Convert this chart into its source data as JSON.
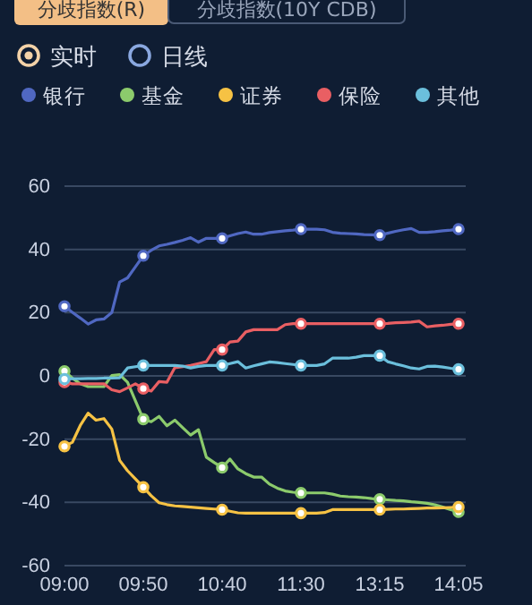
{
  "chart_data": {
    "type": "line",
    "annotations": [
      "分歧指数(R)",
      "分歧指数(10Y CDB)",
      "实时",
      "日线"
    ],
    "categories": [
      "09:00",
      null,
      null,
      null,
      null,
      null,
      null,
      null,
      null,
      null,
      "09:50",
      null,
      null,
      null,
      null,
      null,
      null,
      null,
      null,
      null,
      "10:40",
      null,
      null,
      null,
      null,
      null,
      null,
      null,
      null,
      null,
      "11:30",
      null,
      null,
      null,
      null,
      null,
      null,
      null,
      null,
      null,
      "13:15",
      null,
      null,
      null,
      null,
      null,
      null,
      null,
      null,
      null,
      "14:05"
    ],
    "ylim": [
      -60,
      60
    ],
    "yticks": [
      -60,
      -40,
      -20,
      0,
      20,
      40,
      60
    ],
    "grid": "y",
    "legend": "top",
    "line_style": "solid",
    "series": [
      {
        "name": "银行",
        "color": "#5068c2",
        "values": [
          22,
          20.1,
          18.3,
          16.4,
          17.7,
          18,
          20,
          29.7,
          31,
          34.5,
          38,
          39.7,
          41.1,
          41.6,
          42.2,
          42.9,
          43.7,
          42.3,
          43.5,
          43.5,
          43.5,
          44.3,
          45,
          45.5,
          44.8,
          44.8,
          45.3,
          45.6,
          45.9,
          46.1,
          46.4,
          46.4,
          46.4,
          46.2,
          45.4,
          45.1,
          45,
          44.9,
          44.7,
          44.6,
          44.5,
          45.1,
          45.7,
          46.2,
          46.6,
          45.4,
          45.4,
          45.6,
          45.9,
          46.1,
          46.4
        ]
      },
      {
        "name": "基金",
        "color": "#8ccb6c",
        "values": [
          1.5,
          -0.7,
          -2.5,
          -3.4,
          -3.4,
          -3.4,
          0.1,
          0.4,
          -2,
          -7.9,
          -13.7,
          -14.5,
          -12.8,
          -15.8,
          -14,
          -16.4,
          -18.7,
          -17,
          -25.7,
          -27.4,
          -29,
          -26.3,
          -29.4,
          -30.9,
          -32,
          -32,
          -34.2,
          -35.5,
          -36.4,
          -36.8,
          -37,
          -37,
          -37,
          -37,
          -37.4,
          -38,
          -38.2,
          -38.3,
          -38.5,
          -38.8,
          -39,
          -39.2,
          -39.4,
          -39.5,
          -39.8,
          -40,
          -40.3,
          -40.8,
          -41.5,
          -42.3,
          -43
        ]
      },
      {
        "name": "证券",
        "color": "#f6c244",
        "values": [
          -22.3,
          -21,
          -15.7,
          -11.8,
          -14,
          -13.5,
          -16.8,
          -26.7,
          -30,
          -32.6,
          -35.2,
          -37.9,
          -40.1,
          -40.7,
          -41.1,
          -41.3,
          -41.5,
          -41.7,
          -41.9,
          -42.1,
          -42.3,
          -42.8,
          -43.3,
          -43.4,
          -43.4,
          -43.4,
          -43.4,
          -43.4,
          -43.4,
          -43.4,
          -43.4,
          -43.4,
          -43.4,
          -43.2,
          -42.3,
          -42.3,
          -42.3,
          -42.3,
          -42.3,
          -42.3,
          -42.3,
          -42.2,
          -42.1,
          -42.1,
          -42,
          -41.9,
          -41.8,
          -41.8,
          -41.7,
          -41.6,
          -41.5
        ]
      },
      {
        "name": "保险",
        "color": "#e95f63",
        "values": [
          -2,
          -2.5,
          -2.5,
          -2.5,
          -2.5,
          -2.5,
          -4.4,
          -5,
          -3.8,
          -2.5,
          -4,
          -4.8,
          -1.8,
          -2,
          2.6,
          2.9,
          3.3,
          3.9,
          4.5,
          8.3,
          8.3,
          10.7,
          11,
          13.9,
          14.6,
          14.6,
          14.6,
          14.6,
          16.2,
          16.5,
          16.5,
          16.5,
          16.5,
          16.5,
          16.5,
          16.5,
          16.5,
          16.5,
          16.5,
          16.5,
          16.5,
          16.6,
          16.8,
          16.9,
          17,
          17.3,
          15.5,
          15.8,
          16,
          16.3,
          16.5
        ]
      },
      {
        "name": "其他",
        "color": "#6bbfdc",
        "values": [
          -1,
          -0.9,
          -0.9,
          -0.8,
          -0.8,
          -0.7,
          -0.7,
          -0.6,
          2.5,
          2.9,
          3.3,
          3.3,
          3.3,
          3.3,
          3.3,
          3.1,
          2.5,
          3,
          3.3,
          3.3,
          3.3,
          3.9,
          4.5,
          2.5,
          3.2,
          3.8,
          4.4,
          4.2,
          3.9,
          3.6,
          3.3,
          3.3,
          3.3,
          3.8,
          5.6,
          5.6,
          5.6,
          5.9,
          6.4,
          6.4,
          6.4,
          4.5,
          3.8,
          3.2,
          2.5,
          2.2,
          3,
          3.1,
          2.8,
          2.4,
          2.1
        ]
      }
    ]
  }
}
